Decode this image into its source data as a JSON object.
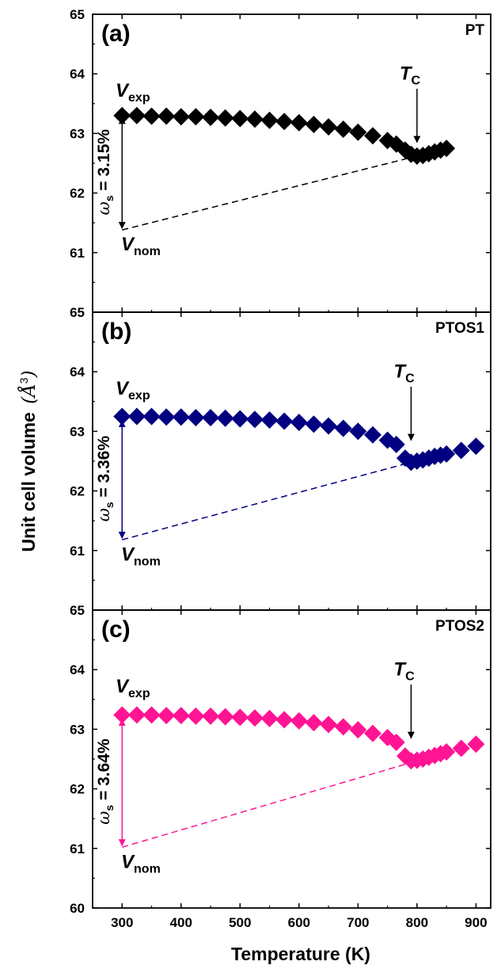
{
  "figure": {
    "ylabel": "Unit cell volume",
    "ylabel_unit": "(Å",
    "ylabel_unit_sup": "3",
    "ylabel_unit_close": ")",
    "xlabel": "Temperature (K)"
  },
  "chart_data": [
    {
      "type": "scatter",
      "panel_label": "(a)",
      "sample": "PT",
      "color": "#000000",
      "x": [
        300,
        325,
        350,
        375,
        400,
        425,
        450,
        475,
        500,
        525,
        550,
        575,
        600,
        625,
        650,
        675,
        700,
        725,
        750,
        765,
        780,
        790,
        800,
        810,
        820,
        830,
        840,
        850
      ],
      "y": [
        63.3,
        63.3,
        63.29,
        63.29,
        63.28,
        63.28,
        63.27,
        63.26,
        63.25,
        63.24,
        63.22,
        63.2,
        63.18,
        63.15,
        63.11,
        63.07,
        63.02,
        62.96,
        62.88,
        62.82,
        62.72,
        62.65,
        62.62,
        62.63,
        62.66,
        62.69,
        62.72,
        62.75
      ],
      "ylim": [
        60,
        65
      ],
      "yticks_shown": [
        "61",
        "62",
        "63",
        "64",
        "65"
      ],
      "v_exp": 63.32,
      "v_nom": 61.38,
      "nominal_line": {
        "x": [
          300,
          800
        ],
        "y": [
          61.38,
          62.62
        ]
      },
      "tc_x": 800,
      "tc_arrow_y": [
        63.75,
        62.85
      ],
      "annotations": {
        "v_exp": "V",
        "v_exp_sub": "exp",
        "v_nom": "V",
        "v_nom_sub": "nom",
        "tc": "T",
        "tc_sub": "C",
        "omega": "ω",
        "omega_sub": "s",
        "omega_value": " = 3.15%"
      }
    },
    {
      "type": "scatter",
      "panel_label": "(b)",
      "sample": "PTOS1",
      "color": "#000080",
      "x": [
        300,
        325,
        350,
        375,
        400,
        425,
        450,
        475,
        500,
        525,
        550,
        575,
        600,
        625,
        650,
        675,
        700,
        725,
        750,
        765,
        780,
        790,
        800,
        810,
        820,
        830,
        840,
        850,
        875,
        900
      ],
      "y": [
        63.25,
        63.25,
        63.25,
        63.24,
        63.24,
        63.23,
        63.23,
        63.22,
        63.21,
        63.2,
        63.19,
        63.17,
        63.15,
        63.12,
        63.09,
        63.05,
        63.0,
        62.94,
        62.85,
        62.78,
        62.55,
        62.48,
        62.5,
        62.52,
        62.55,
        62.58,
        62.6,
        62.62,
        62.68,
        62.75
      ],
      "ylim": [
        60,
        65
      ],
      "yticks_shown": [
        "61",
        "62",
        "63",
        "64",
        "65"
      ],
      "v_exp": 63.23,
      "v_nom": 61.18,
      "nominal_line": {
        "x": [
          300,
          790
        ],
        "y": [
          61.18,
          62.48
        ]
      },
      "tc_x": 790,
      "tc_arrow_y": [
        63.75,
        62.85
      ],
      "annotations": {
        "v_exp": "V",
        "v_exp_sub": "exp",
        "v_nom": "V",
        "v_nom_sub": "nom",
        "tc": "T",
        "tc_sub": "C",
        "omega": "ω",
        "omega_sub": "s",
        "omega_value": " = 3.36%"
      }
    },
    {
      "type": "scatter",
      "panel_label": "(c)",
      "sample": "PTOS2",
      "color": "#FF1493",
      "x": [
        300,
        325,
        350,
        375,
        400,
        425,
        450,
        475,
        500,
        525,
        550,
        575,
        600,
        625,
        650,
        675,
        700,
        725,
        750,
        765,
        780,
        790,
        800,
        810,
        820,
        830,
        840,
        850,
        875,
        900
      ],
      "y": [
        63.24,
        63.24,
        63.24,
        63.23,
        63.23,
        63.22,
        63.22,
        63.21,
        63.2,
        63.19,
        63.18,
        63.16,
        63.14,
        63.11,
        63.08,
        63.04,
        62.99,
        62.93,
        62.86,
        62.78,
        62.55,
        62.47,
        62.48,
        62.5,
        62.53,
        62.56,
        62.59,
        62.62,
        62.68,
        62.75
      ],
      "ylim": [
        60,
        65
      ],
      "yticks_shown": [
        "60",
        "61",
        "62",
        "63",
        "64",
        "65"
      ],
      "v_exp": 63.22,
      "v_nom": 61.02,
      "nominal_line": {
        "x": [
          300,
          790
        ],
        "y": [
          61.02,
          62.44
        ]
      },
      "tc_x": 790,
      "tc_arrow_y": [
        63.75,
        62.85
      ],
      "annotations": {
        "v_exp": "V",
        "v_exp_sub": "exp",
        "v_nom": "V",
        "v_nom_sub": "nom",
        "tc": "T",
        "tc_sub": "C",
        "omega": "ω",
        "omega_sub": "s",
        "omega_value": " = 3.64%"
      }
    }
  ],
  "x_axis": {
    "xlim": [
      250,
      925
    ],
    "ticks": [
      300,
      400,
      500,
      600,
      700,
      800,
      900
    ],
    "tick_labels": [
      "300",
      "400",
      "500",
      "600",
      "700",
      "800",
      "900"
    ]
  }
}
